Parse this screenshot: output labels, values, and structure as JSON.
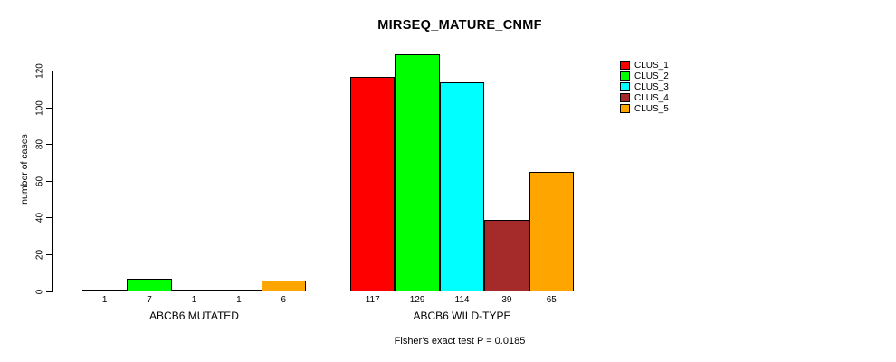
{
  "title": "MIRSEQ_MATURE_CNMF",
  "footer": "Fisher's exact test P = 0.0185",
  "legend": {
    "position": "top-right",
    "items": [
      {
        "label": "CLUS_1",
        "color": "#FF0000"
      },
      {
        "label": "CLUS_2",
        "color": "#00FF00"
      },
      {
        "label": "CLUS_3",
        "color": "#00FFFF"
      },
      {
        "label": "CLUS_4",
        "color": "#A52A2A"
      },
      {
        "label": "CLUS_5",
        "color": "#FFA500"
      }
    ]
  },
  "chart_data": {
    "type": "bar",
    "title": "MIRSEQ_MATURE_CNMF",
    "ylabel": "number of cases",
    "xlabel": "",
    "annotation": "Fisher's exact test P = 0.0185",
    "ylim": [
      0,
      130
    ],
    "yticks": [
      0,
      20,
      40,
      60,
      80,
      100,
      120
    ],
    "grid": false,
    "legend_position": "top-right",
    "categories": [
      "ABCB6 MUTATED",
      "ABCB6 WILD-TYPE"
    ],
    "series": [
      {
        "name": "CLUS_1",
        "color": "#FF0000",
        "values": [
          1,
          117
        ]
      },
      {
        "name": "CLUS_2",
        "color": "#00FF00",
        "values": [
          7,
          129
        ]
      },
      {
        "name": "CLUS_3",
        "color": "#00FFFF",
        "values": [
          1,
          114
        ]
      },
      {
        "name": "CLUS_4",
        "color": "#A52A2A",
        "values": [
          1,
          39
        ]
      },
      {
        "name": "CLUS_5",
        "color": "#FFA500",
        "values": [
          6,
          65
        ]
      }
    ],
    "bar_value_labels": [
      [
        1,
        7,
        1,
        1,
        6
      ],
      [
        117,
        129,
        114,
        39,
        65
      ]
    ]
  }
}
